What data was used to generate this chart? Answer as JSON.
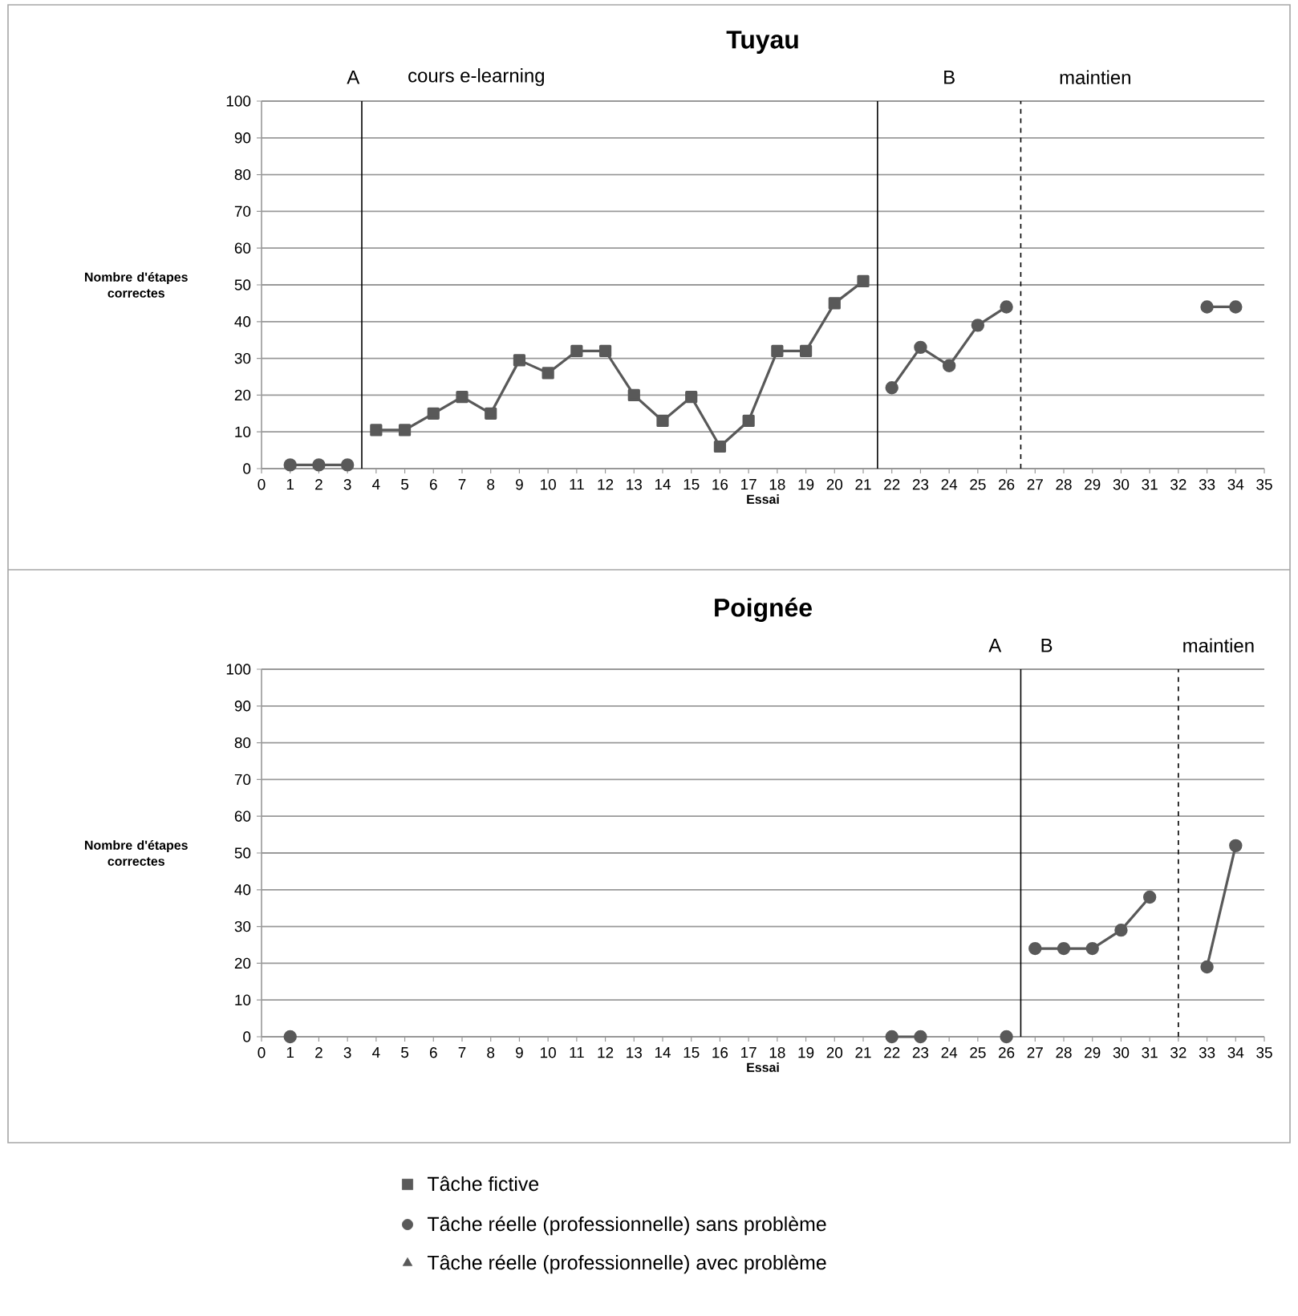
{
  "chart_data": [
    {
      "type": "line",
      "title": "Tuyau",
      "xlabel": "Essai",
      "ylabel": "Nombre d'étapes correctes",
      "xlim": [
        0,
        35
      ],
      "xticks": [
        0,
        1,
        2,
        3,
        4,
        5,
        6,
        7,
        8,
        9,
        10,
        11,
        12,
        13,
        14,
        15,
        16,
        17,
        18,
        19,
        20,
        21,
        22,
        23,
        24,
        25,
        26,
        27,
        28,
        29,
        30,
        31,
        32,
        33,
        34,
        35
      ],
      "ylim": [
        0,
        100
      ],
      "yticks": [
        0,
        10,
        20,
        30,
        40,
        50,
        60,
        70,
        80,
        90,
        100
      ],
      "grid": "y",
      "line_style": "solid",
      "ref_lines": [
        {
          "axis": "x",
          "value": 3.5,
          "color": "#000000",
          "line_style": "solid"
        },
        {
          "axis": "x",
          "value": 21.5,
          "color": "#000000",
          "line_style": "solid"
        },
        {
          "axis": "x",
          "value": 26.5,
          "color": "#000000",
          "line_style": "dashed"
        }
      ],
      "annotations": [
        "A",
        "cours e-learning",
        "B",
        "maintien"
      ],
      "series": [
        {
          "color": "#595959",
          "marker": "circle",
          "x": [
            1,
            2,
            3
          ],
          "values": [
            1,
            1,
            1
          ]
        },
        {
          "name": "Tâche fictive",
          "color": "#595959",
          "marker": "square",
          "x": [
            4,
            5,
            6,
            7,
            8,
            9,
            10,
            11,
            12,
            13,
            14,
            15,
            16,
            17,
            18,
            19,
            20,
            21
          ],
          "values": [
            10.5,
            10.5,
            15,
            19.5,
            15,
            29.5,
            26,
            32,
            32,
            20,
            13,
            19.5,
            6,
            13,
            32,
            32,
            45,
            51
          ]
        },
        {
          "color": "#595959",
          "marker": "circle",
          "x": [
            22,
            23,
            24,
            25,
            26
          ],
          "values": [
            22,
            33,
            28,
            39,
            44
          ]
        },
        {
          "color": "#595959",
          "marker": "circle",
          "x": [
            33,
            34
          ],
          "values": [
            44,
            44
          ]
        }
      ]
    },
    {
      "type": "line",
      "title": "Poignée",
      "xlabel": "Essai",
      "ylabel": "Nombre d'étapes correctes",
      "xlim": [
        0,
        35
      ],
      "xticks": [
        0,
        1,
        2,
        3,
        4,
        5,
        6,
        7,
        8,
        9,
        10,
        11,
        12,
        13,
        14,
        15,
        16,
        17,
        18,
        19,
        20,
        21,
        22,
        23,
        24,
        25,
        26,
        27,
        28,
        29,
        30,
        31,
        32,
        33,
        34,
        35
      ],
      "ylim": [
        0,
        100
      ],
      "yticks": [
        0,
        10,
        20,
        30,
        40,
        50,
        60,
        70,
        80,
        90,
        100
      ],
      "grid": "y",
      "line_style": "solid",
      "legend": "bottom",
      "ref_lines": [
        {
          "axis": "x",
          "value": 26.5,
          "color": "#000000",
          "line_style": "solid"
        },
        {
          "axis": "x",
          "value": 32,
          "color": "#000000",
          "line_style": "dashed"
        }
      ],
      "annotations": [
        "A",
        "B",
        "maintien"
      ],
      "series": [
        {
          "name": "Tâche réelle (professionnelle) sans problème",
          "color": "#595959",
          "marker": "circle",
          "x": [
            1
          ],
          "values": [
            0
          ]
        },
        {
          "color": "#595959",
          "marker": "circle",
          "x": [
            22,
            23
          ],
          "values": [
            0,
            0
          ]
        },
        {
          "color": "#595959",
          "marker": "circle",
          "x": [
            26
          ],
          "values": [
            0
          ]
        },
        {
          "color": "#595959",
          "marker": "circle",
          "x": [
            27,
            28,
            29,
            30,
            31
          ],
          "values": [
            24,
            24,
            24,
            29,
            38
          ]
        },
        {
          "color": "#595959",
          "marker": "circle",
          "x": [
            33,
            34
          ],
          "values": [
            19,
            52
          ]
        },
        {
          "name": "Tâche réelle (professionnelle) avec problème",
          "color": "#595959",
          "marker": "triangle"
        }
      ]
    }
  ]
}
